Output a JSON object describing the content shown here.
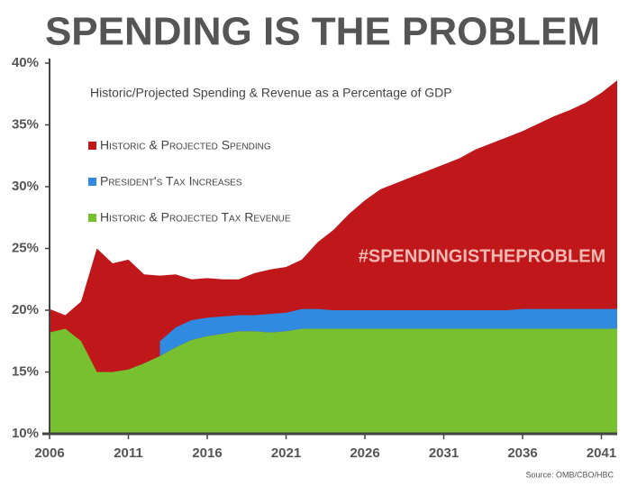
{
  "chart_data": {
    "type": "area",
    "title": "SPENDING IS THE PROBLEM",
    "subtitle": "Historic/Projected Spending & Revenue as a Percentage of GDP",
    "annotation": "#SPENDINGISTHEPROBLEM",
    "source": "Source: OMB/CBO/HBC",
    "x": [
      2006,
      2007,
      2008,
      2009,
      2010,
      2011,
      2012,
      2013,
      2014,
      2015,
      2016,
      2017,
      2018,
      2019,
      2020,
      2021,
      2022,
      2023,
      2024,
      2025,
      2026,
      2027,
      2028,
      2029,
      2030,
      2031,
      2032,
      2033,
      2034,
      2035,
      2036,
      2037,
      2038,
      2039,
      2040,
      2041,
      2042
    ],
    "series": [
      {
        "name": "Historic & Projected Spending",
        "color": "#c0171b",
        "values": [
          20.1,
          19.6,
          20.7,
          25.0,
          23.8,
          24.1,
          22.9,
          22.8,
          22.9,
          22.5,
          22.6,
          22.5,
          22.5,
          23.0,
          23.3,
          23.5,
          24.1,
          25.5,
          26.5,
          27.8,
          28.9,
          29.8,
          30.3,
          30.8,
          31.3,
          31.8,
          32.3,
          33.0,
          33.5,
          34.0,
          34.5,
          35.1,
          35.7,
          36.2,
          36.8,
          37.6,
          38.6
        ]
      },
      {
        "name": "Historic & Projected Tax Revenue",
        "color": "#77c130",
        "values": [
          18.2,
          18.5,
          17.5,
          15.0,
          15.0,
          15.2,
          15.7,
          16.3,
          17.0,
          17.6,
          17.9,
          18.1,
          18.3,
          18.3,
          18.2,
          18.3,
          18.5,
          18.5,
          18.5,
          18.5,
          18.5,
          18.5,
          18.5,
          18.5,
          18.5,
          18.5,
          18.5,
          18.5,
          18.5,
          18.5,
          18.5,
          18.5,
          18.5,
          18.5,
          18.5,
          18.5,
          18.5
        ]
      },
      {
        "name": "President's Tax Increases",
        "color": "#2f8ae0",
        "stacked_on": 1,
        "values": [
          null,
          null,
          null,
          null,
          null,
          null,
          null,
          1.2,
          1.6,
          1.6,
          1.5,
          1.4,
          1.3,
          1.3,
          1.5,
          1.5,
          1.6,
          1.6,
          1.5,
          1.5,
          1.5,
          1.5,
          1.5,
          1.5,
          1.5,
          1.5,
          1.5,
          1.5,
          1.5,
          1.5,
          1.6,
          1.6,
          1.6,
          1.6,
          1.6,
          1.6,
          1.6
        ]
      }
    ],
    "legend_order": [
      0,
      2,
      1
    ],
    "xlim": [
      2006,
      2042
    ],
    "xticks": [
      2006,
      2011,
      2016,
      2021,
      2026,
      2031,
      2036,
      2041
    ],
    "ylim": [
      10,
      40
    ],
    "yticks": [
      {
        "value": 10,
        "label": "10%"
      },
      {
        "value": 15,
        "label": "15%"
      },
      {
        "value": 20,
        "label": "20%"
      },
      {
        "value": 25,
        "label": "25%"
      },
      {
        "value": 30,
        "label": "30%"
      },
      {
        "value": 35,
        "label": "35%"
      },
      {
        "value": 40,
        "label": "40%"
      }
    ],
    "grid": false
  }
}
